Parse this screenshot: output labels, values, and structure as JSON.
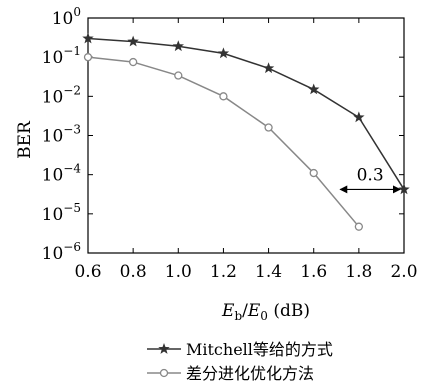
{
  "chart_data": {
    "type": "line",
    "title": "",
    "xlabel": "E_b/E_0 (dB)",
    "xlabel_parts": {
      "e1": "E",
      "sub1": "b",
      "slash": "/",
      "e2": "E",
      "sub2": "0",
      "unit": " (dB)"
    },
    "ylabel": "BER",
    "scale_y": "log",
    "xlim": [
      0.6,
      2.0
    ],
    "ylim": [
      1e-06,
      1
    ],
    "x_ticks": [
      "0.6",
      "0.8",
      "1.0",
      "1.2",
      "1.4",
      "1.6",
      "1.8",
      "2.0"
    ],
    "y_ticks": [
      {
        "base": "10",
        "exp": "0",
        "value": 1
      },
      {
        "base": "10",
        "exp": "−1",
        "value": 0.1
      },
      {
        "base": "10",
        "exp": "−2",
        "value": 0.01
      },
      {
        "base": "10",
        "exp": "−3",
        "value": 0.001
      },
      {
        "base": "10",
        "exp": "−4",
        "value": 0.0001
      },
      {
        "base": "10",
        "exp": "−5",
        "value": 1e-05
      },
      {
        "base": "10",
        "exp": "−6",
        "value": 1e-06
      }
    ],
    "grid": false,
    "legend_position": "bottom",
    "series": [
      {
        "name": "Mitchell等给的方式",
        "marker": "star",
        "color": "#333333",
        "x": [
          0.6,
          0.8,
          1.0,
          1.2,
          1.4,
          1.6,
          1.8,
          2.0
        ],
        "y": [
          0.3,
          0.25,
          0.19,
          0.125,
          0.052,
          0.015,
          0.0029,
          4.2e-05
        ]
      },
      {
        "name": "差分进化优化方法",
        "marker": "circle",
        "color": "#888888",
        "x": [
          0.6,
          0.8,
          1.0,
          1.2,
          1.4,
          1.6,
          1.8
        ],
        "y": [
          0.1,
          0.075,
          0.034,
          0.01,
          0.0016,
          0.00011,
          4.7e-06
        ]
      }
    ],
    "annotations": [
      {
        "text": "0.3",
        "x_from": 1.7,
        "x_to": 2.0,
        "y": 4.2e-05
      }
    ]
  }
}
